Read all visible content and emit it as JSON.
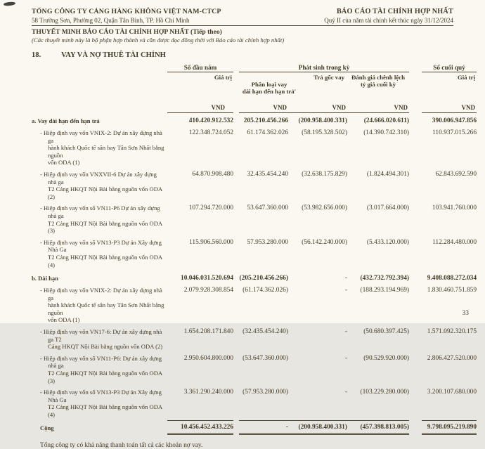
{
  "header": {
    "company": "TỔNG CÔNG TY CẢNG HÀNG KHÔNG VIỆT NAM-CTCP",
    "address": "58 Trường Sơn, Phường 02, Quận Tân Bình, TP. Hồ Chí Minh",
    "report_title": "BÁO CÁO TÀI CHÍNH HỢP NHẤT",
    "report_period": "Quý II của năm tài chính kết thúc ngày 31/12/2024",
    "notes_title": "THUYẾT MINH BÁO CÁO TÀI CHÍNH HỢP NHẤT (Tiếp theo)",
    "notes_subtitle": "(Các thuyết minh này là bộ phận hợp thành và cần được đọc đồng thời với Báo cáo tài chính hợp nhất)"
  },
  "section": {
    "number": "18.",
    "title": "VAY VÀ NỢ THUÊ TÀI CHÍNH"
  },
  "table": {
    "col_groups": {
      "opening": "Số đầu năm",
      "movements": "Phát sinh trong kỳ",
      "closing": "Số cuối quý"
    },
    "sub_headers": {
      "opening_value": "Giá trị",
      "reclass": "Phân loại vay\ndài hạn đến hạn trả'",
      "repayment": "Trả gốc vay",
      "fx": "Đánh giá chênh lệch\ntỷ giá cuối kỳ",
      "closing_value": "Giá trị"
    },
    "currency": "VND",
    "rows": [
      {
        "style": "group",
        "label": "a. Vay dài hạn đến hạn trả",
        "v": [
          "410.420.912.532",
          "205.210.456.266",
          "(200.958.400.331)",
          "(24.666.020.611)",
          "390.006.947.856"
        ]
      },
      {
        "style": "item",
        "label": "- Hiệp định vay vốn VNIX-2: Dự án xây dựng nhà ga\nhành khách Quốc tế sân bay Tân Sơn Nhất bằng nguồn\nvốn ODA (1)",
        "v": [
          "122.348.724.052",
          "61.174.362.026",
          "(58.195.328.502)",
          "(14.390.742.310)",
          "110.937.015.266"
        ]
      },
      {
        "style": "item",
        "label": "- Hiệp định vay vốn VNXVII-6 Dự án xây dựng nhà ga\nT2 Cảng HKQT Nội Bài bằng nguồn vốn ODA (2)",
        "v": [
          "64.870.908.480",
          "32.435.454.240",
          "(32.638.175.829)",
          "(1.824.494.301)",
          "62.843.692.590"
        ]
      },
      {
        "style": "item",
        "label": "- Hiệp định vay vốn số VN11-P6 Dự án xây dựng nhà ga\nT2 Cảng HKQT Nội Bài bằng nguồn vốn ODA (3)",
        "v": [
          "107.294.720.000",
          "53.647.360.000",
          "(53.982.656.000)",
          "(3.017.664.000)",
          "103.941.760.000"
        ]
      },
      {
        "style": "item",
        "label": "- Hiệp định vay vốn số VN13-P3 Dự án Xây dựng Nhà Ga\nT2 Cảng HKQT Nội Bài bằng nguồn vốn ODA (4)",
        "v": [
          "115.906.560.000",
          "57.953.280.000",
          "(56.142.240.000)",
          "(5.433.120.000)",
          "112.284.480.000"
        ]
      },
      {
        "style": "group",
        "label": "b. Dài hạn",
        "v": [
          "10.046.031.520.694",
          "(205.210.456.266)",
          "-",
          "(432.732.792.394)",
          "9.408.088.272.034"
        ]
      },
      {
        "style": "item",
        "label": "- Hiệp định vay vốn VNIX-2: Dự án xây dựng nhà ga\nhành khách Quốc tế sân bay Tân Sơn Nhất bằng nguồn\nvốn ODA (1)",
        "v": [
          "2.079.928.308.854",
          "(61.174.362.026)",
          "-",
          "(188.293.194.969)",
          "1.830.460.751.859"
        ]
      },
      {
        "style": "item",
        "label": "- Hiệp định vay vốn VN17-6: Dự án xây dựng nhà ga T2\nCảng HKQT Nội Bài bằng nguồn vốn ODA (2)",
        "v": [
          "1.654.208.171.840",
          "(32.435.454.240)",
          "-",
          "(50.680.397.425)",
          "1.571.092.320.175"
        ]
      },
      {
        "style": "item",
        "label": "- Hiệp định vay vốn số VN11-P6: Dự án xây dựng nhà ga\nT2 Cảng HKQT Nội Bài bằng nguồn vốn ODA (3)",
        "v": [
          "2.950.604.800.000",
          "(53.647.360.000)",
          "-",
          "(90.529.920.000)",
          "2.806.427.520.000"
        ]
      },
      {
        "style": "item",
        "label": "- Hiệp định vay vốn số VN13-P3 Dự án Xây dựng Nhà Ga\nT2 Cảng HKQT Nội Bài bằng nguồn vốn ODA (4)",
        "v": [
          "3.361.290.240.000",
          "(57.953.280.000)",
          "-",
          "(103.229.280.000)",
          "3.200.107.680.000"
        ]
      },
      {
        "style": "total",
        "label": "Cộng",
        "v": [
          "10.456.452.433.226",
          "-",
          "(200.958.400.331)",
          "(457.398.813.005)",
          "9.798.095.219.890"
        ]
      }
    ]
  },
  "footer": {
    "note": "Tổng công ty có khả năng thanh toán tất cả các khoản nợ vay.",
    "page_number": "33"
  }
}
